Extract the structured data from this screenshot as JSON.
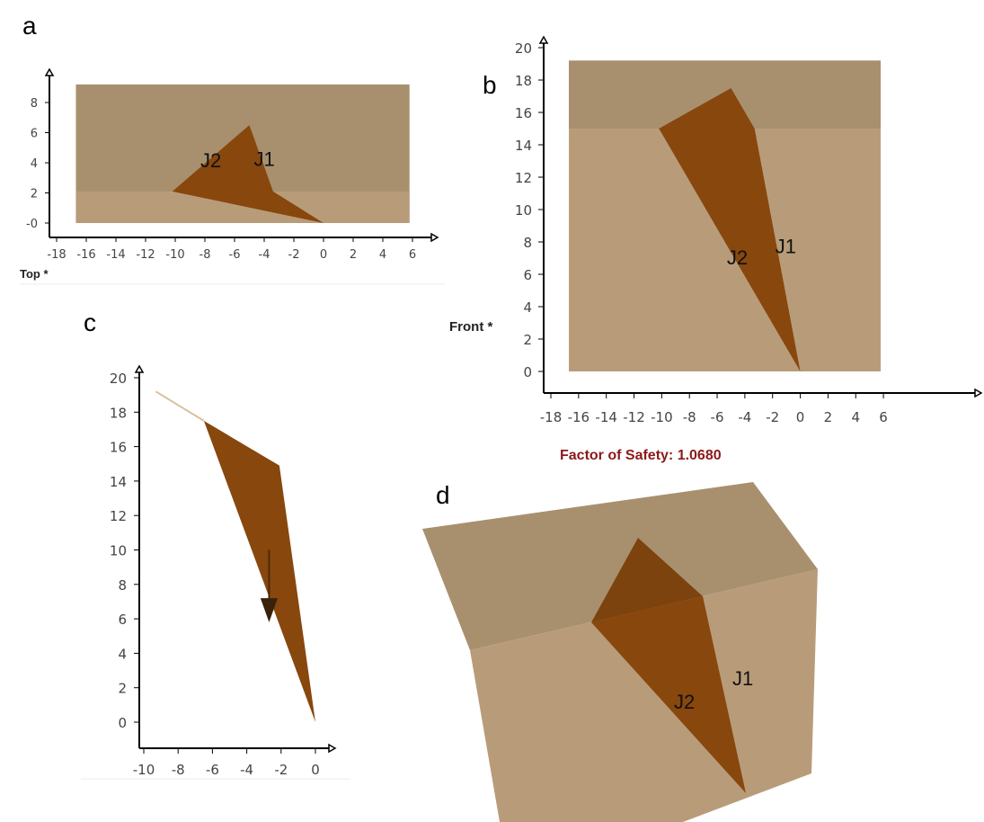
{
  "panels": {
    "a": {
      "label": "a",
      "view": "Top *",
      "x_ticks": [
        "-18",
        "-16",
        "-14",
        "-12",
        "-10",
        "-8",
        "-6",
        "-4",
        "-2",
        "0",
        "2",
        "4",
        "6"
      ],
      "y_ticks": [
        "-0",
        "2",
        "4",
        "6",
        "8"
      ],
      "joints": [
        "J2",
        "J1"
      ]
    },
    "b": {
      "label": "b",
      "view": "Front *",
      "x_ticks": [
        "-18",
        "-16",
        "-14",
        "-12",
        "-10",
        "-8",
        "-6",
        "-4",
        "-2",
        "0",
        "2",
        "4",
        "6"
      ],
      "y_ticks": [
        "0",
        "2",
        "4",
        "6",
        "8",
        "10",
        "12",
        "14",
        "16",
        "18",
        "20"
      ],
      "joints": [
        "J2",
        "J1"
      ],
      "factor_of_safety": "Factor of Safety: 1.0680"
    },
    "c": {
      "label": "c",
      "x_ticks": [
        "-10",
        "-8",
        "-6",
        "-4",
        "-2",
        "0"
      ],
      "y_ticks": [
        "0",
        "2",
        "4",
        "6",
        "8",
        "10",
        "12",
        "14",
        "16",
        "18",
        "20"
      ]
    },
    "d": {
      "label": "d",
      "joints": [
        "J2",
        "J1"
      ]
    }
  },
  "colors": {
    "slope_top": "#a8906f",
    "slope_face": "#b89c7a",
    "wedge": "#88470d",
    "wedge_top": "#7c430f",
    "fos_text": "#8b1a1a"
  }
}
